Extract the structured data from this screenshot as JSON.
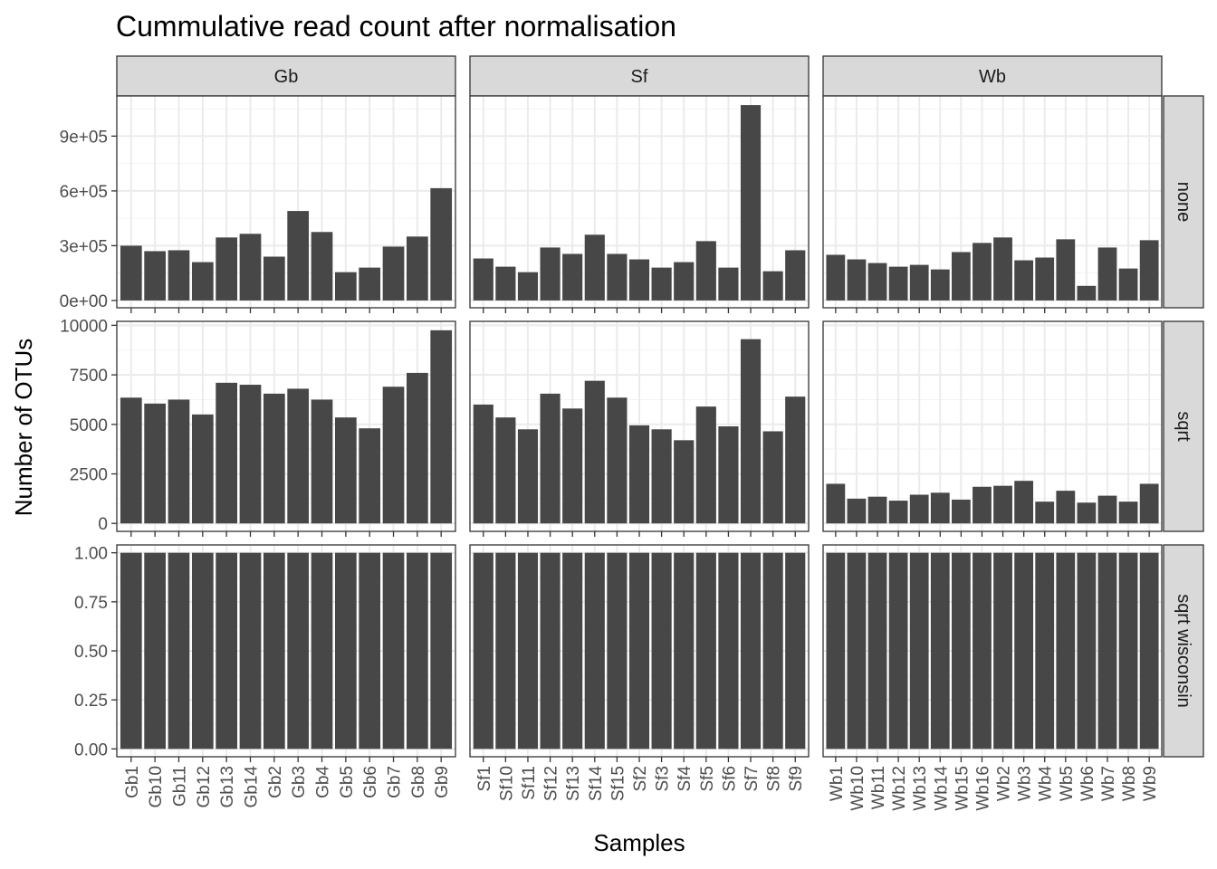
{
  "chart_data": {
    "type": "bar",
    "title": "Cummulative read count after normalisation",
    "xlabel": "Samples",
    "ylabel": "Number of OTUs",
    "grid": true,
    "facet_cols": [
      {
        "name": "Gb",
        "categories": [
          "Gb1",
          "Gb10",
          "Gb11",
          "Gb12",
          "Gb13",
          "Gb14",
          "Gb2",
          "Gb3",
          "Gb4",
          "Gb5",
          "Gb6",
          "Gb7",
          "Gb8",
          "Gb9"
        ]
      },
      {
        "name": "Sf",
        "categories": [
          "Sf1",
          "Sf10",
          "Sf11",
          "Sf12",
          "Sf13",
          "Sf14",
          "Sf15",
          "Sf2",
          "Sf3",
          "Sf4",
          "Sf5",
          "Sf6",
          "Sf7",
          "Sf8",
          "Sf9"
        ]
      },
      {
        "name": "Wb",
        "categories": [
          "Wb1",
          "Wb10",
          "Wb11",
          "Wb12",
          "Wb13",
          "Wb14",
          "Wb15",
          "Wb16",
          "Wb2",
          "Wb3",
          "Wb4",
          "Wb5",
          "Wb6",
          "Wb7",
          "Wb8",
          "Wb9"
        ]
      }
    ],
    "facet_rows": [
      {
        "name": "none",
        "ylim": [
          -40000,
          1120000
        ],
        "yticks": [
          0,
          300000,
          600000,
          900000
        ],
        "ytick_labels": [
          "0e+00",
          "3e+05",
          "6e+05",
          "9e+05"
        ],
        "values": {
          "Gb": [
            300000,
            270000,
            275000,
            210000,
            345000,
            365000,
            240000,
            490000,
            375000,
            155000,
            180000,
            295000,
            350000,
            615000
          ],
          "Sf": [
            230000,
            185000,
            155000,
            290000,
            255000,
            360000,
            255000,
            225000,
            180000,
            210000,
            325000,
            180000,
            1070000,
            160000,
            275000
          ],
          "Wb": [
            250000,
            225000,
            205000,
            185000,
            195000,
            170000,
            265000,
            315000,
            345000,
            220000,
            235000,
            335000,
            80000,
            290000,
            175000,
            330000
          ]
        }
      },
      {
        "name": "sqrt",
        "ylim": [
          -400,
          10200
        ],
        "yticks": [
          0,
          2500,
          5000,
          7500,
          10000
        ],
        "ytick_labels": [
          "0",
          "2500",
          "5000",
          "7500",
          "10000"
        ],
        "values": {
          "Gb": [
            6350,
            6050,
            6250,
            5500,
            7100,
            7000,
            6550,
            6800,
            6250,
            5350,
            4800,
            6900,
            7600,
            9750
          ],
          "Sf": [
            6000,
            5350,
            4750,
            6550,
            5800,
            7200,
            6350,
            4950,
            4750,
            4200,
            5900,
            4900,
            9300,
            4650,
            6400
          ],
          "Wb": [
            2000,
            1250,
            1350,
            1150,
            1450,
            1550,
            1200,
            1850,
            1900,
            2150,
            1100,
            1650,
            1050,
            1400,
            1100,
            2000
          ]
        }
      },
      {
        "name": "sqrt wisconsin",
        "ylim": [
          -0.04,
          1.04
        ],
        "yticks": [
          0,
          0.25,
          0.5,
          0.75,
          1
        ],
        "ytick_labels": [
          "0.00",
          "0.25",
          "0.50",
          "0.75",
          "1.00"
        ],
        "values": {
          "Gb": [
            1,
            1,
            1,
            1,
            1,
            1,
            1,
            1,
            1,
            1,
            1,
            1,
            1,
            1
          ],
          "Sf": [
            1,
            1,
            1,
            1,
            1,
            1,
            1,
            1,
            1,
            1,
            1,
            1,
            1,
            1,
            1
          ],
          "Wb": [
            1,
            1,
            1,
            1,
            1,
            1,
            1,
            1,
            1,
            1,
            1,
            1,
            1,
            1,
            1,
            1
          ]
        }
      }
    ]
  }
}
